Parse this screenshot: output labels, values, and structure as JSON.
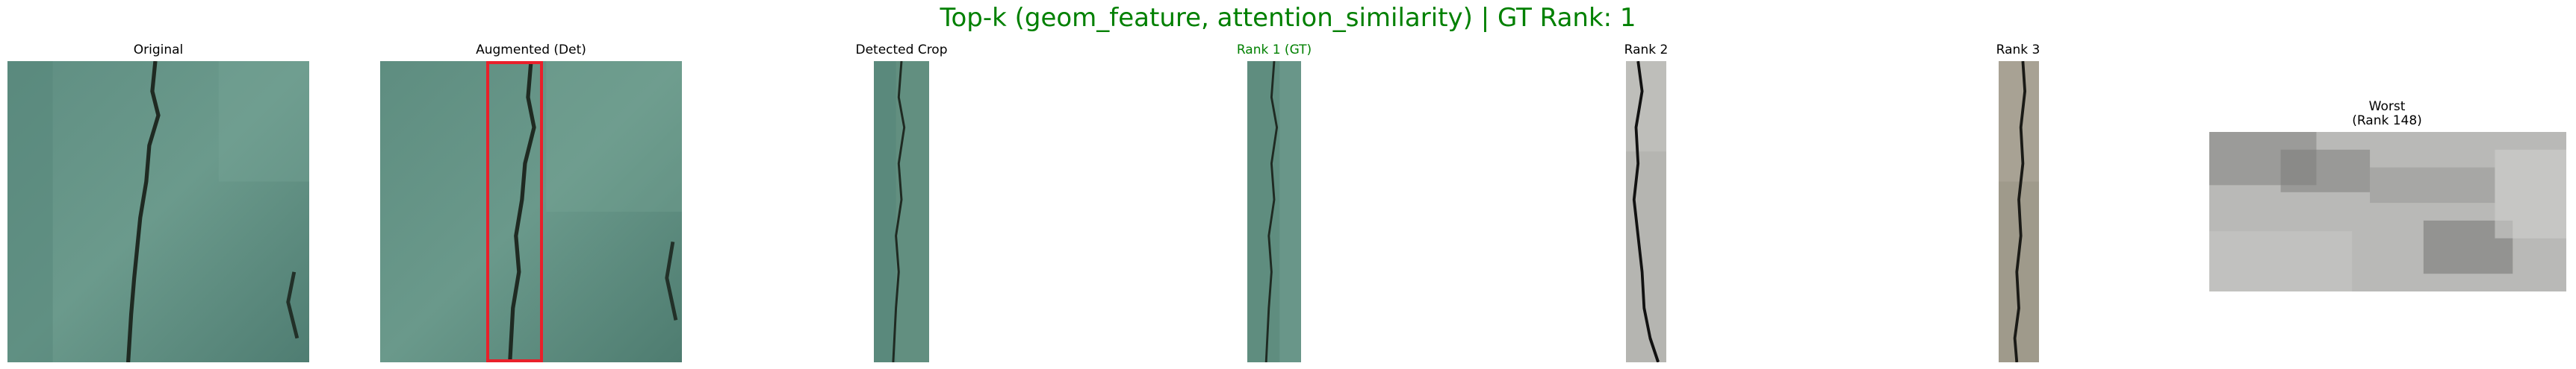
{
  "figure": {
    "title": "Top-k (geom_feature, attention_similarity) | GT Rank: 1",
    "title_color": "#008000"
  },
  "panels": [
    {
      "title": "Original",
      "image": "green stone surface with vertical crack"
    },
    {
      "title": "Augmented (Det)",
      "image": "green stone surface with red detection box around crack",
      "box_color": "#e8202a"
    },
    {
      "title": "Detected Crop",
      "image": "narrow crop of green crack"
    },
    {
      "title": "Rank 1 (GT)",
      "image": "narrow crop of green crack",
      "title_color": "#008000"
    },
    {
      "title": "Rank 2",
      "image": "grey concrete with dark crack"
    },
    {
      "title": "Rank 3",
      "image": "beige stone with dark crack"
    },
    {
      "title": "Worst",
      "subtitle": "(Rank 148)",
      "image": "blurry grey rocky texture"
    }
  ]
}
